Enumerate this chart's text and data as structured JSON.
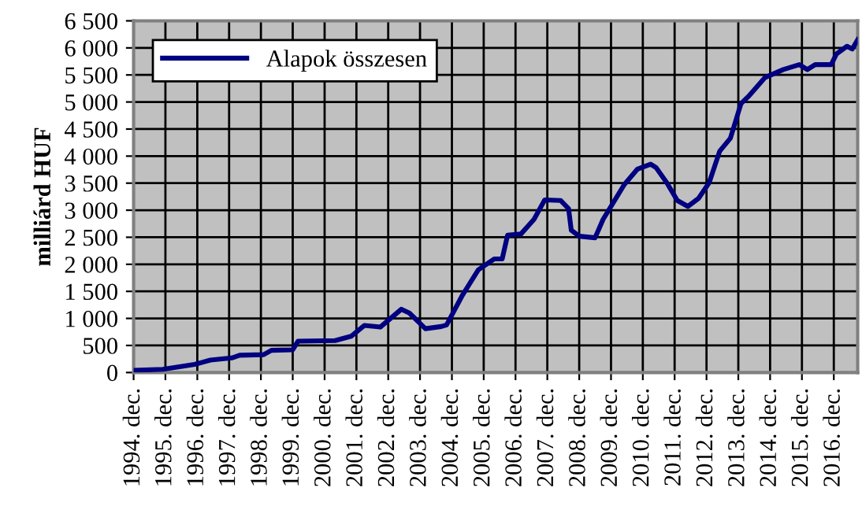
{
  "chart_data": {
    "type": "line",
    "ylabel": "milliárd HUF",
    "x": [
      "1994-12",
      "1995-11",
      "1996-11",
      "1997-05",
      "1998-01",
      "1998-04",
      "1999-01",
      "1999-04",
      "1999-12",
      "2000-02",
      "2001-04",
      "2001-10",
      "2002-03",
      "2002-09",
      "2003-05",
      "2003-08",
      "2004-02",
      "2004-08",
      "2004-10",
      "2005-04",
      "2005-10",
      "2006-04",
      "2006-07",
      "2006-09",
      "2007-02",
      "2007-07",
      "2007-11",
      "2008-05",
      "2008-08",
      "2008-09",
      "2008-12",
      "2009-06",
      "2009-09",
      "2010-05",
      "2010-10",
      "2011-03",
      "2011-05",
      "2011-09",
      "2012-01",
      "2012-05",
      "2012-09",
      "2013-01",
      "2013-05",
      "2013-09",
      "2014-01",
      "2014-04",
      "2014-10",
      "2015-05",
      "2015-11",
      "2016-02",
      "2016-05",
      "2016-11",
      "2017-01",
      "2017-05",
      "2017-07",
      "2017-09"
    ],
    "series": [
      {
        "name": "Alapok összesen",
        "color": "#000080",
        "values": [
          40,
          60,
          150,
          230,
          270,
          320,
          330,
          410,
          420,
          580,
          590,
          670,
          870,
          840,
          1170,
          1100,
          810,
          850,
          880,
          1430,
          1900,
          2100,
          2100,
          2540,
          2560,
          2830,
          3190,
          3180,
          3030,
          2630,
          2520,
          2490,
          2830,
          3470,
          3760,
          3850,
          3790,
          3510,
          3180,
          3070,
          3220,
          3510,
          4090,
          4330,
          4970,
          5110,
          5450,
          5600,
          5690,
          5600,
          5690,
          5690,
          5890,
          6030,
          5980,
          6150
        ]
      }
    ],
    "xlim": [
      "1994-12",
      "2017-09"
    ],
    "xticks": [
      {
        "value": "1994-12",
        "label": "1994. dec."
      },
      {
        "value": "1995-12",
        "label": "1995. dec."
      },
      {
        "value": "1996-12",
        "label": "1996. dec."
      },
      {
        "value": "1997-12",
        "label": "1997. dec."
      },
      {
        "value": "1998-12",
        "label": "1998. dec."
      },
      {
        "value": "1999-12",
        "label": "1999. dec."
      },
      {
        "value": "2000-12",
        "label": "2000. dec."
      },
      {
        "value": "2001-12",
        "label": "2001. dec."
      },
      {
        "value": "2002-12",
        "label": "2002. dec."
      },
      {
        "value": "2003-12",
        "label": "2003. dec."
      },
      {
        "value": "2004-12",
        "label": "2004. dec."
      },
      {
        "value": "2005-12",
        "label": "2005. dec."
      },
      {
        "value": "2006-12",
        "label": "2006. dec."
      },
      {
        "value": "2007-12",
        "label": "2007. dec."
      },
      {
        "value": "2008-12",
        "label": "2008. dec."
      },
      {
        "value": "2009-12",
        "label": "2009. dec."
      },
      {
        "value": "2010-12",
        "label": "2010. dec."
      },
      {
        "value": "2011-12",
        "label": "2011. dec."
      },
      {
        "value": "2012-12",
        "label": "2012. dec."
      },
      {
        "value": "2013-12",
        "label": "2013. dec."
      },
      {
        "value": "2014-12",
        "label": "2014. dec."
      },
      {
        "value": "2015-12",
        "label": "2015. dec."
      },
      {
        "value": "2016-12",
        "label": "2016. dec."
      }
    ],
    "ylim": [
      0,
      6500
    ],
    "yticks": [
      0,
      500,
      {
        "value": 1000,
        "label": "1 000"
      },
      {
        "value": 1500,
        "label": "1 500"
      },
      {
        "value": 2000,
        "label": "2 000"
      },
      {
        "value": 2500,
        "label": "2 500"
      },
      {
        "value": 3000,
        "label": "3 000"
      },
      {
        "value": 3500,
        "label": "3 500"
      },
      {
        "value": 4000,
        "label": "4 000"
      },
      {
        "value": 4500,
        "label": "4 500"
      },
      {
        "value": 5000,
        "label": "5 000"
      },
      {
        "value": 5500,
        "label": "5 500"
      },
      {
        "value": 6000,
        "label": "6 000"
      },
      {
        "value": 6500,
        "label": "6 500"
      }
    ],
    "grid": true,
    "legend": "top left",
    "marker": "none",
    "line_style": "solid"
  }
}
